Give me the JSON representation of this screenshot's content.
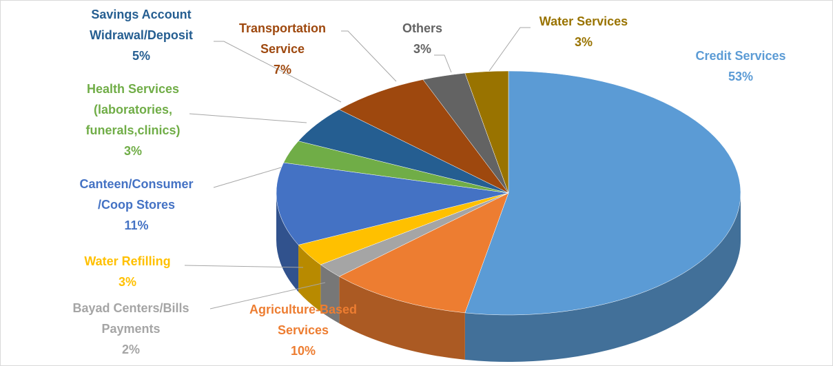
{
  "chart_data": {
    "type": "pie",
    "categories": [
      "Credit Services",
      "Agriculture-Based\nServices",
      "Bayad Centers/Bills\nPayments",
      "Water Refilling",
      "Canteen/Consumer\n/Coop Stores",
      "Health Services\n(laboratories,\nfunerals,clinics)",
      "Savings Account\nWidrawal/Deposit",
      "Transportation\nService",
      "Others",
      "Water Services"
    ],
    "values": [
      53,
      10,
      2,
      3,
      11,
      3,
      5,
      7,
      3,
      3
    ],
    "value_labels": [
      "53%",
      "10%",
      "2%",
      "3%",
      "11%",
      "3%",
      "5%",
      "7%",
      "3%",
      "3%"
    ],
    "colors": [
      "#5b9bd5",
      "#ed7d31",
      "#a5a5a5",
      "#ffc000",
      "#4472c4",
      "#70ad47",
      "#255e91",
      "#9e480e",
      "#636363",
      "#997300"
    ]
  }
}
